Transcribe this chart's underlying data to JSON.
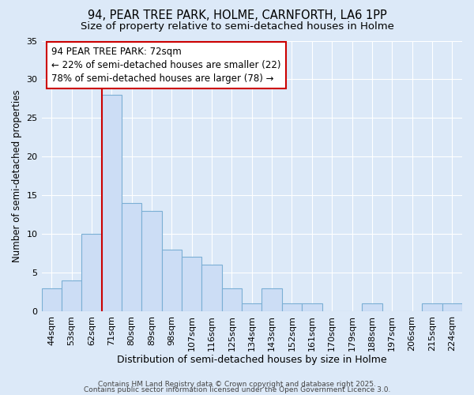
{
  "title1": "94, PEAR TREE PARK, HOLME, CARNFORTH, LA6 1PP",
  "title2": "Size of property relative to semi-detached houses in Holme",
  "xlabel": "Distribution of semi-detached houses by size in Holme",
  "ylabel": "Number of semi-detached properties",
  "bins": [
    "44sqm",
    "53sqm",
    "62sqm",
    "71sqm",
    "80sqm",
    "89sqm",
    "98sqm",
    "107sqm",
    "116sqm",
    "125sqm",
    "134sqm",
    "143sqm",
    "152sqm",
    "161sqm",
    "170sqm",
    "179sqm",
    "188sqm",
    "197sqm",
    "206sqm",
    "215sqm",
    "224sqm"
  ],
  "values": [
    3,
    4,
    10,
    28,
    14,
    13,
    8,
    7,
    6,
    3,
    1,
    3,
    1,
    1,
    0,
    0,
    1,
    0,
    0,
    1,
    1
  ],
  "bar_color": "#ccddf5",
  "bar_edge_color": "#7bafd4",
  "vline_x_index": 3,
  "vline_color": "#cc0000",
  "annotation_text": "94 PEAR TREE PARK: 72sqm\n← 22% of semi-detached houses are smaller (22)\n78% of semi-detached houses are larger (78) →",
  "annotation_box_color": "#ffffff",
  "annotation_box_edge_color": "#cc0000",
  "background_color": "#dce9f8",
  "grid_color": "#ffffff",
  "footer1": "Contains HM Land Registry data © Crown copyright and database right 2025.",
  "footer2": "Contains public sector information licensed under the Open Government Licence 3.0.",
  "ylim": [
    0,
    35
  ],
  "yticks": [
    0,
    5,
    10,
    15,
    20,
    25,
    30,
    35
  ],
  "title1_fontsize": 10.5,
  "title2_fontsize": 9.5,
  "xlabel_fontsize": 9,
  "ylabel_fontsize": 8.5,
  "tick_fontsize": 8,
  "footer_fontsize": 6.5,
  "annotation_fontsize": 8.5
}
